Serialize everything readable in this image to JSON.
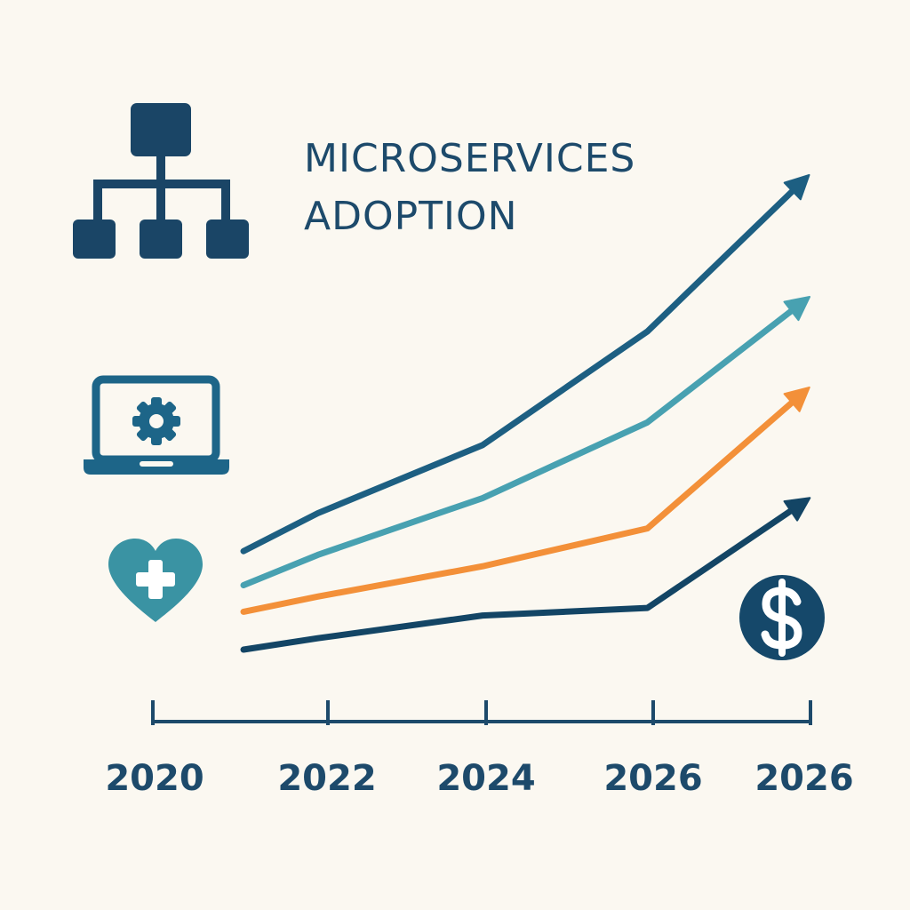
{
  "colors": {
    "background": "#fbf8f1",
    "navy": "#1d4a6b",
    "teal": "#48a1b1",
    "orange": "#f39039",
    "dark_navy": "#134565",
    "icon_teal": "#3a93a3"
  },
  "icons": {
    "hierarchy": "org-hierarchy-icon",
    "laptop": "laptop-gear-icon",
    "health": "heart-plus-icon",
    "finance": "dollar-coin-icon"
  },
  "chart_data": {
    "type": "line",
    "title_lines": [
      "MICROSERVICES",
      "ADOPTION"
    ],
    "x_ticks": [
      "2020",
      "2022",
      "2024",
      "2026",
      "2026"
    ],
    "series": [
      {
        "color": "#1d5f82",
        "values": [
          {
            "x": 2021.1,
            "y": 45
          },
          {
            "x": 2022.0,
            "y": 55
          },
          {
            "x": 2024.0,
            "y": 73
          },
          {
            "x": 2026.0,
            "y": 103
          },
          {
            "x": 2027.9,
            "y": 143
          }
        ]
      },
      {
        "color": "#48a1b1",
        "values": [
          {
            "x": 2021.1,
            "y": 36
          },
          {
            "x": 2022.0,
            "y": 44
          },
          {
            "x": 2024.0,
            "y": 59
          },
          {
            "x": 2026.0,
            "y": 79
          },
          {
            "x": 2027.9,
            "y": 111
          }
        ]
      },
      {
        "color": "#f39039",
        "values": [
          {
            "x": 2021.1,
            "y": 29
          },
          {
            "x": 2022.0,
            "y": 33
          },
          {
            "x": 2024.0,
            "y": 41
          },
          {
            "x": 2026.0,
            "y": 51
          },
          {
            "x": 2027.9,
            "y": 87
          }
        ]
      },
      {
        "color": "#134565",
        "values": [
          {
            "x": 2021.1,
            "y": 19
          },
          {
            "x": 2022.0,
            "y": 22
          },
          {
            "x": 2024.0,
            "y": 28
          },
          {
            "x": 2026.0,
            "y": 30
          },
          {
            "x": 2027.9,
            "y": 58
          }
        ]
      }
    ],
    "xlim": [
      2020,
      2028
    ],
    "ylim": [
      0,
      160
    ],
    "grid": false,
    "legend": "none"
  }
}
